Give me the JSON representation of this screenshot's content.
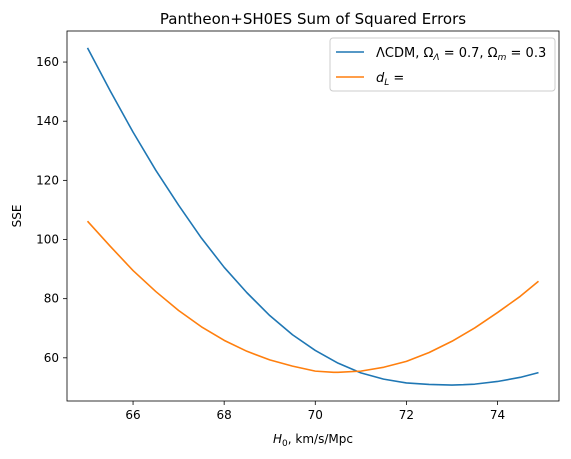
{
  "chart_data": {
    "type": "line",
    "title": "Pantheon+SH0ES Sum of Squared Errors",
    "xlabel": "H",
    "xlabel_sub": "0",
    "xlabel_rest": ", km/s/Mpc",
    "ylabel": "SSE",
    "xlim": [
      64.55,
      75.35
    ],
    "ylim": [
      45.4,
      170.5
    ],
    "xticks": [
      66,
      68,
      70,
      72,
      74
    ],
    "yticks": [
      60,
      80,
      100,
      120,
      140,
      160
    ],
    "legend_position": "top-right",
    "series": [
      {
        "name": "ΛCDM, Ω",
        "legend_sub1": "Λ",
        "legend_mid": " = 0.7, Ω",
        "legend_sub2": "m",
        "legend_end": " = 0.3",
        "color": "#1f77b4",
        "x": [
          65,
          65.5,
          66,
          66.5,
          67,
          67.5,
          68,
          68.5,
          69,
          69.5,
          70,
          70.5,
          71,
          71.5,
          72,
          72.5,
          73,
          73.25,
          73.5,
          74,
          74.5,
          74.9
        ],
        "y": [
          164.8,
          150.2,
          136.3,
          123.4,
          111.6,
          100.5,
          90.6,
          82.0,
          74.3,
          67.8,
          62.5,
          58.2,
          54.9,
          52.8,
          51.5,
          51.0,
          50.8,
          50.9,
          51.1,
          52.0,
          53.4,
          55.0
        ]
      },
      {
        "name": "d",
        "legend_sub1": "L",
        "legend_mid": " =",
        "legend_sub2": "",
        "legend_end": "",
        "color": "#ff7f0e",
        "x": [
          65,
          65.5,
          66,
          66.5,
          67,
          67.5,
          68,
          68.5,
          69,
          69.5,
          70,
          70.4,
          70.5,
          71,
          71.5,
          72,
          72.5,
          73,
          73.5,
          74,
          74.5,
          74.9
        ],
        "y": [
          106.2,
          97.7,
          89.5,
          82.4,
          76.0,
          70.5,
          65.9,
          62.2,
          59.3,
          57.2,
          55.5,
          55.1,
          55.1,
          55.5,
          56.8,
          58.8,
          61.8,
          65.6,
          70.1,
          75.3,
          80.8,
          85.9
        ]
      }
    ]
  }
}
